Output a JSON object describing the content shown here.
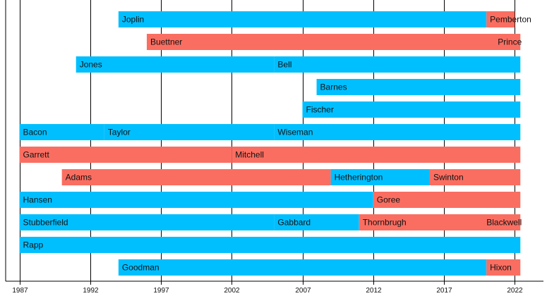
{
  "chart_data": {
    "type": "timeline",
    "title": "",
    "xlabel": "",
    "ylabel": "",
    "xlim": [
      1987,
      2022.4
    ],
    "grid": "vertical",
    "colors": {
      "blue": "#00bfff",
      "red": "#fa6e61"
    },
    "ticks": [
      1987,
      1992,
      1997,
      2002,
      2007,
      2012,
      2017,
      2022
    ],
    "tick_labels": [
      "1987",
      "1992",
      "1997",
      "2002",
      "2007",
      "2012",
      "2017",
      "2022"
    ],
    "rows": [
      {
        "segments": [
          {
            "label": "Joplin",
            "start": 1994,
            "end": 2020,
            "color": "blue"
          },
          {
            "label": "Pemberton",
            "start": 2020,
            "end": 2022,
            "color": "red"
          }
        ]
      },
      {
        "segments": [
          {
            "label": "Buettner",
            "start": 1996,
            "end": 2022.4,
            "color": "red"
          }
        ],
        "end_labels": [
          {
            "label": "Prince",
            "at": 2022.4
          }
        ]
      },
      {
        "segments": [
          {
            "label": "Jones",
            "start": 1991,
            "end": 2005,
            "color": "blue"
          },
          {
            "label": "Bell",
            "start": 2005,
            "end": 2022.4,
            "color": "blue"
          }
        ]
      },
      {
        "segments": [
          {
            "label": "Barnes",
            "start": 2008,
            "end": 2022.4,
            "color": "blue"
          }
        ]
      },
      {
        "segments": [
          {
            "label": "Fischer",
            "start": 2007,
            "end": 2022.4,
            "color": "blue"
          }
        ]
      },
      {
        "segments": [
          {
            "label": "Bacon",
            "start": 1987,
            "end": 1993,
            "color": "blue"
          },
          {
            "label": "Taylor",
            "start": 1993,
            "end": 2005,
            "color": "blue"
          },
          {
            "label": "Wiseman",
            "start": 2005,
            "end": 2022.4,
            "color": "blue"
          }
        ]
      },
      {
        "segments": [
          {
            "label": "Garrett",
            "start": 1987,
            "end": 2002,
            "color": "red"
          },
          {
            "label": "Mitchell",
            "start": 2002,
            "end": 2022.4,
            "color": "red"
          }
        ]
      },
      {
        "segments": [
          {
            "label": "Adams",
            "start": 1990,
            "end": 2009,
            "color": "red"
          },
          {
            "label": "Hetherington",
            "start": 2009,
            "end": 2016,
            "color": "blue"
          },
          {
            "label": "Swinton",
            "start": 2016,
            "end": 2022.4,
            "color": "red"
          }
        ]
      },
      {
        "segments": [
          {
            "label": "Hansen",
            "start": 1987,
            "end": 2012,
            "color": "blue"
          },
          {
            "label": "Goree",
            "start": 2012,
            "end": 2022.4,
            "color": "red"
          }
        ]
      },
      {
        "segments": [
          {
            "label": "Stubberfield",
            "start": 1987,
            "end": 2005,
            "color": "blue"
          },
          {
            "label": "Gabbard",
            "start": 2005,
            "end": 2011,
            "color": "blue"
          },
          {
            "label": "Thornbrugh",
            "start": 2011,
            "end": 2022.4,
            "color": "red"
          }
        ],
        "end_labels": [
          {
            "label": "Blackwell",
            "at": 2022.4
          }
        ]
      },
      {
        "segments": [
          {
            "label": "Rapp",
            "start": 1987,
            "end": 2022.4,
            "color": "blue"
          }
        ]
      },
      {
        "segments": [
          {
            "label": "Goodman",
            "start": 1994,
            "end": 2020,
            "color": "blue"
          },
          {
            "label": "Hixon",
            "start": 2020,
            "end": 2022.4,
            "color": "red"
          }
        ]
      }
    ]
  }
}
